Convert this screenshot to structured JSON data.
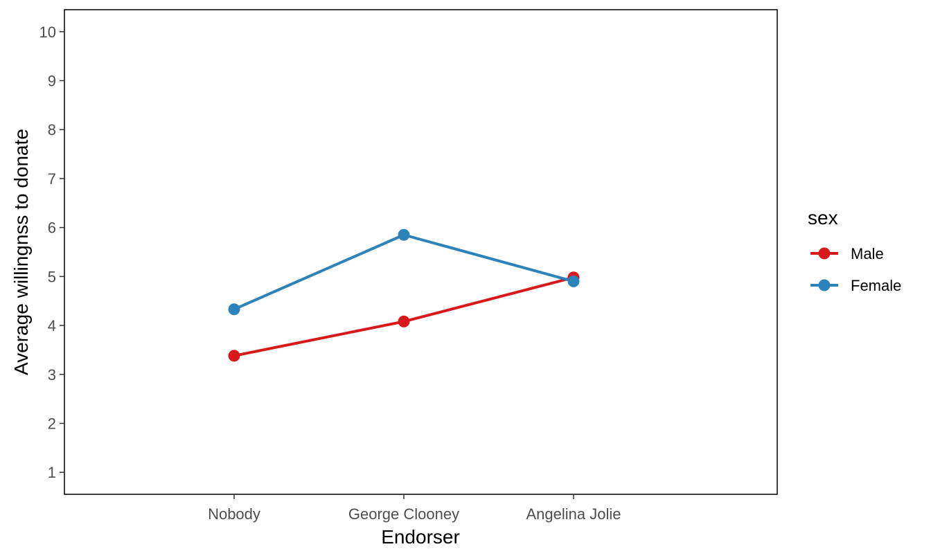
{
  "chart_data": {
    "type": "line",
    "title": "",
    "xlabel": "Endorser",
    "ylabel": "Average willingnss to donate",
    "categories": [
      "Nobody",
      "George Clooney",
      "Angelina Jolie"
    ],
    "ylim": [
      0.55,
      10.45
    ],
    "yticks": [
      "1",
      "2",
      "3",
      "4",
      "5",
      "6",
      "7",
      "8",
      "9",
      "10"
    ],
    "grid": false,
    "legend": {
      "title": "sex",
      "position": "right"
    },
    "series": [
      {
        "name": "Male",
        "color": "#d7191c",
        "values": [
          3.38,
          4.08,
          4.98
        ]
      },
      {
        "name": "Female",
        "color": "#2b83ba",
        "values": [
          4.33,
          5.85,
          4.9
        ]
      }
    ]
  }
}
